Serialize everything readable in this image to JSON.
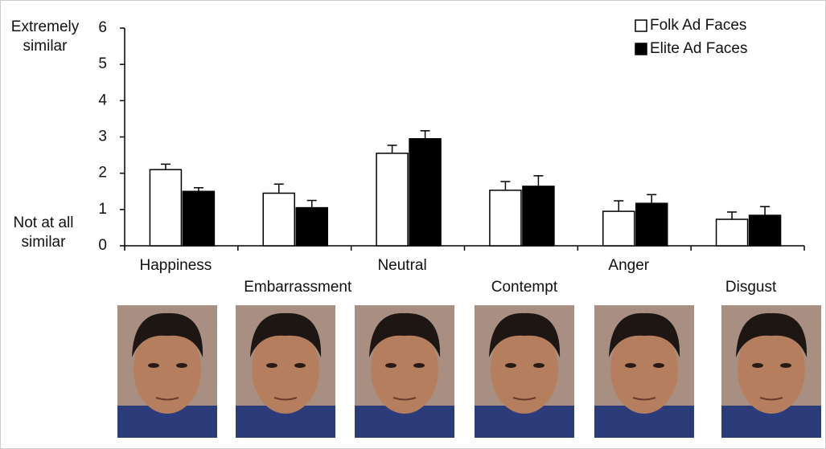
{
  "chart_data": {
    "type": "bar",
    "categories": [
      "Happiness",
      "Embarrassment",
      "Neutral",
      "Contempt",
      "Anger",
      "Disgust"
    ],
    "series": [
      {
        "name": "Folk Ad Faces",
        "color": "#ffffff",
        "values": [
          2.1,
          1.45,
          2.55,
          1.53,
          0.95,
          0.73
        ],
        "errors": [
          0.15,
          0.25,
          0.22,
          0.24,
          0.29,
          0.2
        ]
      },
      {
        "name": "Elite Ad Faces",
        "color": "#000000",
        "values": [
          1.5,
          1.05,
          2.95,
          1.64,
          1.17,
          0.84
        ],
        "errors": [
          0.1,
          0.2,
          0.22,
          0.29,
          0.24,
          0.24
        ]
      }
    ],
    "annotations": [
      "Extremely similar",
      "Not at all similar"
    ],
    "ylim": [
      0,
      6
    ],
    "yticks": [
      0,
      1,
      2,
      3,
      4,
      5,
      6
    ],
    "legend": "top-right"
  }
}
